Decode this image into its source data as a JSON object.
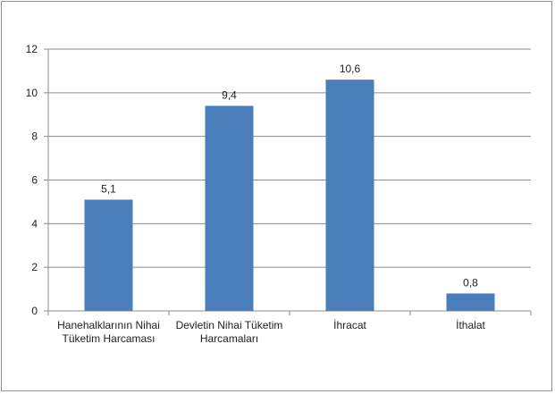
{
  "chart_data": {
    "type": "bar",
    "categories": [
      [
        "Hanehalklarının Nihai",
        "Tüketim Harcaması"
      ],
      [
        "Devletin Nihai Tüketim",
        "Harcamaları"
      ],
      [
        "İhracat"
      ],
      [
        "İthalat"
      ]
    ],
    "values": [
      5.1,
      9.4,
      10.6,
      0.8
    ],
    "data_labels": [
      "5,1",
      "9,4",
      "10,6",
      "0,8"
    ],
    "ylim": [
      0,
      12
    ],
    "yticks": [
      0,
      2,
      4,
      6,
      8,
      10,
      12
    ],
    "grid": true,
    "bar_color": "#4a7ebb",
    "grid_color": "#8c8c8c"
  }
}
